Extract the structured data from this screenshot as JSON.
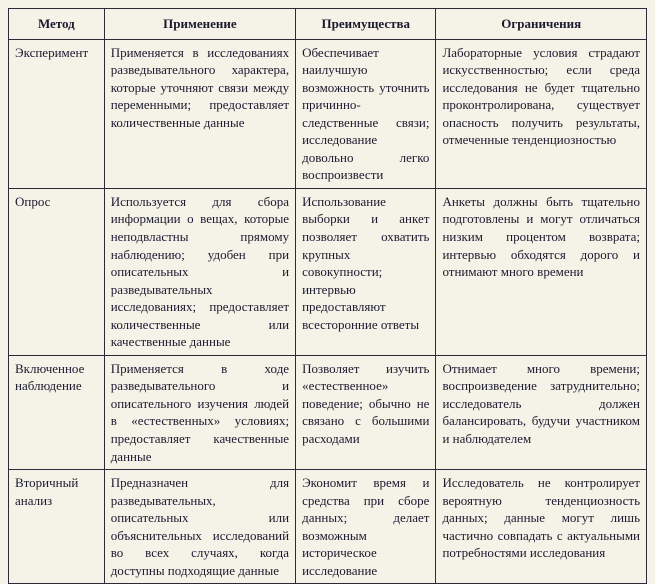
{
  "headers": {
    "method": "Метод",
    "application": "Применение",
    "advantages": "Преимущества",
    "limitations": "Ограничения"
  },
  "rows": [
    {
      "method": "Эксперимент",
      "application": "Применяется в исследованиях разведывательного характера, которые уточняют связи между переменными; предоставляет количественные данные",
      "advantages": "Обеспечивает наилучшую возможность уточнить причинно-следственные связи; исследование довольно легко воспроизвести",
      "limitations": "Лабораторные условия страдают искусственностью; если среда исследования не будет тщательно проконтролирована, существует опасность получить результаты, отмеченные тенденциозностью"
    },
    {
      "method": "Опрос",
      "application": "Используется для сбора информации о вещах, которые неподвластны прямому наблюдению; удобен при описательных и разведывательных исследованиях; предоставляет количественные или качественные данные",
      "advantages": "Использование выборки и анкет позволяет охватить крупных совокупности; интервью предоставляют всесторонние ответы",
      "limitations": "Анкеты должны быть тщательно подготовлены и могут отличаться низким процентом возврата; интервью обходятся дорого и отнимают много времени"
    },
    {
      "method": "Включенное наблюдение",
      "application": "Применяется в ходе разведывательного и описательного изучения людей в «естественных» условиях; предоставляет качественные данные",
      "advantages": "Позволяет изучить «естественное» поведение; обычно не связано с большими расходами",
      "limitations": "Отнимает много времени; воспроизведение затруднительно; исследователь должен балансировать, будучи участником и наблюдателем"
    },
    {
      "method": "Вторичный анализ",
      "application": "Предназначен для разведывательных, описательных или объяснительных исследований во всех случаях, когда доступны подходящие данные",
      "advantages": "Экономит время и средства при сборе данных; делает возможным историческое исследование",
      "limitations": "Исследователь не контролирует вероятную тенденциозность данных; данные могут лишь частично совпадать с актуальными потребностями исследования"
    }
  ]
}
